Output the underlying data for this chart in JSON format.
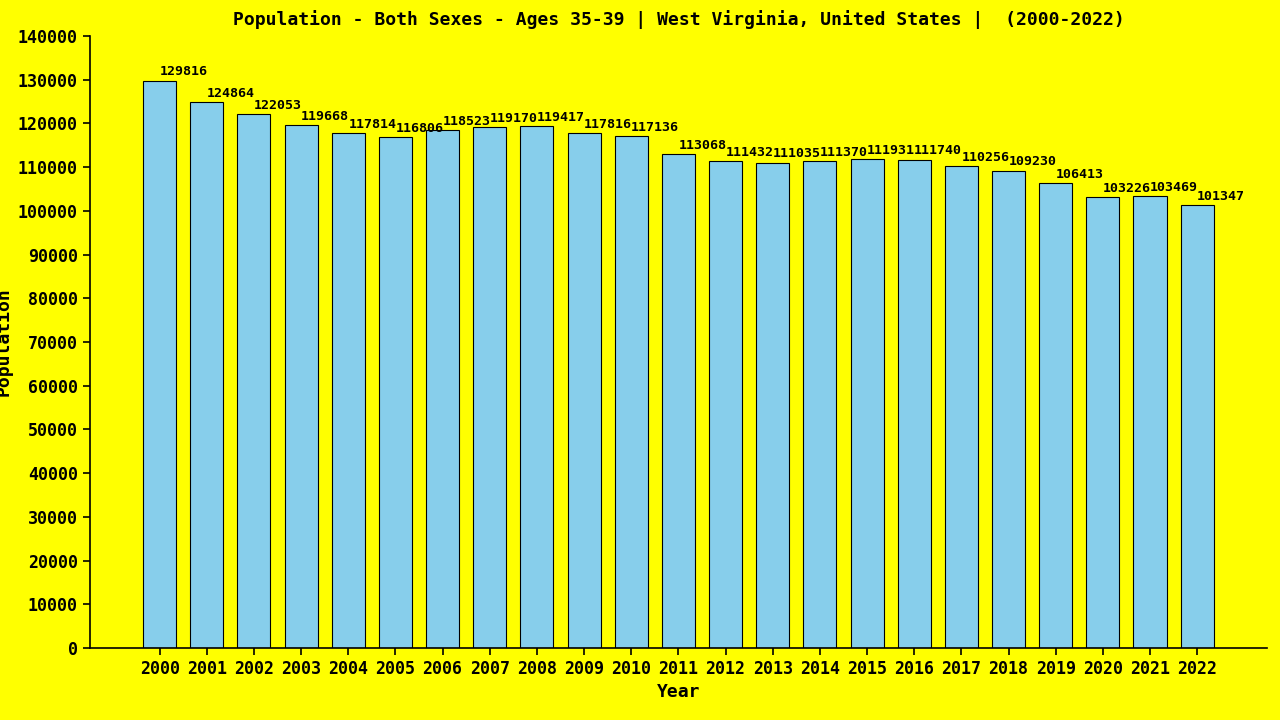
{
  "title": "Population - Both Sexes - Ages 35-39 | West Virginia, United States |  (2000-2022)",
  "years": [
    2000,
    2001,
    2002,
    2003,
    2004,
    2005,
    2006,
    2007,
    2008,
    2009,
    2010,
    2011,
    2012,
    2013,
    2014,
    2015,
    2016,
    2017,
    2018,
    2019,
    2020,
    2021,
    2022
  ],
  "values": [
    129816,
    124864,
    122053,
    119668,
    117814,
    116806,
    118523,
    119170,
    119417,
    117816,
    117136,
    113068,
    111432,
    111035,
    111370,
    111931,
    111740,
    110256,
    109230,
    106413,
    103226,
    103469,
    101347
  ],
  "bar_color": "#87CEEB",
  "bar_edgecolor": "#000000",
  "background_color": "#FFFF00",
  "title_color": "#000000",
  "label_color": "#000000",
  "xlabel": "Year",
  "ylabel": "Population",
  "ylim": [
    0,
    140000
  ],
  "ytick_step": 10000,
  "title_fontsize": 13,
  "axis_label_fontsize": 13,
  "tick_fontsize": 12,
  "bar_label_fontsize": 9.5
}
